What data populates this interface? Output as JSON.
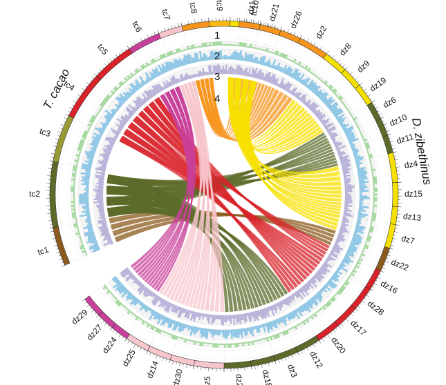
{
  "species": {
    "left": "T. cacao",
    "right": "D. zibethinus"
  },
  "track_numbers": [
    "1",
    "2",
    "3",
    "4"
  ],
  "chromosomes": [
    {
      "name": "tc1",
      "color": "#8B5A1C"
    },
    {
      "name": "tc2",
      "color": "#5C6B2A"
    },
    {
      "name": "tc3",
      "color": "#9A9A35"
    },
    {
      "name": "tc4",
      "color": "#D8232A"
    },
    {
      "name": "tc5",
      "color": "#D8232A"
    },
    {
      "name": "tc6",
      "color": "#C8409A"
    },
    {
      "name": "tc7",
      "color": "#F7C6CC"
    },
    {
      "name": "tc8",
      "color": "#F7941D"
    },
    {
      "name": "tc9",
      "color": "#FDB913"
    },
    {
      "name": "tc10",
      "color": "#F5E000"
    },
    {
      "name": "dz1",
      "color": "#F7941D"
    },
    {
      "name": "dz21",
      "color": "#F7941D"
    },
    {
      "name": "dz26",
      "color": "#F7941D"
    },
    {
      "name": "dz2",
      "color": "#F7941D"
    },
    {
      "name": "dz8",
      "color": "#F5E000"
    },
    {
      "name": "dz9",
      "color": "#F5E000"
    },
    {
      "name": "dz19",
      "color": "#F5E000"
    },
    {
      "name": "dz6",
      "color": "#5C6B2A"
    },
    {
      "name": "dz10",
      "color": "#5C6B2A"
    },
    {
      "name": "dz11",
      "color": "#5C6B2A"
    },
    {
      "name": "dz4",
      "color": "#F5E000"
    },
    {
      "name": "dz15",
      "color": "#F5E000"
    },
    {
      "name": "dz13",
      "color": "#F5E000"
    },
    {
      "name": "dz7",
      "color": "#F5E000"
    },
    {
      "name": "dz22",
      "color": "#8B5A1C"
    },
    {
      "name": "dz16",
      "color": "#D8232A"
    },
    {
      "name": "dz28",
      "color": "#D8232A"
    },
    {
      "name": "dz17",
      "color": "#D8232A"
    },
    {
      "name": "dz20",
      "color": "#D8232A"
    },
    {
      "name": "dz12",
      "color": "#5C6B2A"
    },
    {
      "name": "dz3",
      "color": "#5C6B2A"
    },
    {
      "name": "dz18",
      "color": "#5C6B2A"
    },
    {
      "name": "dz23",
      "color": "#5C6B2A"
    },
    {
      "name": "dz5",
      "color": "#F7C6CC"
    },
    {
      "name": "dz30",
      "color": "#F7C6CC"
    },
    {
      "name": "dz14",
      "color": "#F7C6CC"
    },
    {
      "name": "dz25",
      "color": "#F7C6CC"
    },
    {
      "name": "dz24",
      "color": "#C8409A"
    },
    {
      "name": "dz27",
      "color": "#C8409A"
    },
    {
      "name": "dz29",
      "color": "#C8409A"
    }
  ],
  "colors": {
    "track1_fill": "#B9B3DA",
    "track2_fill": "#8FC7E6",
    "track3_fill": "#A6D9A0",
    "track4_bg": "#FFFFFF"
  }
}
